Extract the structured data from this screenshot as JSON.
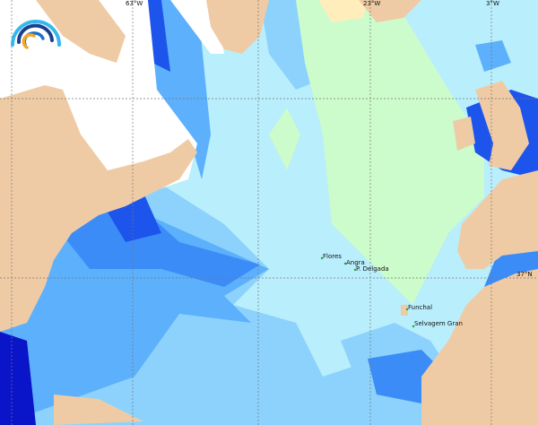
{
  "map": {
    "longitude_labels": [
      "63°W",
      "23°W",
      "3°W"
    ],
    "latitude_labels": [
      "37°N"
    ],
    "places": [
      {
        "name": "Flores"
      },
      {
        "name": "Angra"
      },
      {
        "name": "P. Delgada"
      },
      {
        "name": "Funchal"
      },
      {
        "name": "Selvagem Gran"
      }
    ],
    "colors": {
      "land": "#efcba5",
      "no_data": "#ffffff",
      "level_1": "#ffeebb",
      "level_2": "#ccfccc",
      "level_3": "#c6f8fc",
      "level_4": "#b4e8fc",
      "level_5": "#8cd2fc",
      "level_6": "#5cb0fc",
      "level_7": "#3c8cf8",
      "level_8": "#1c54ec",
      "level_9": "#0a14c8"
    }
  },
  "logo": {
    "icon": "rainbow-arc-logo"
  }
}
